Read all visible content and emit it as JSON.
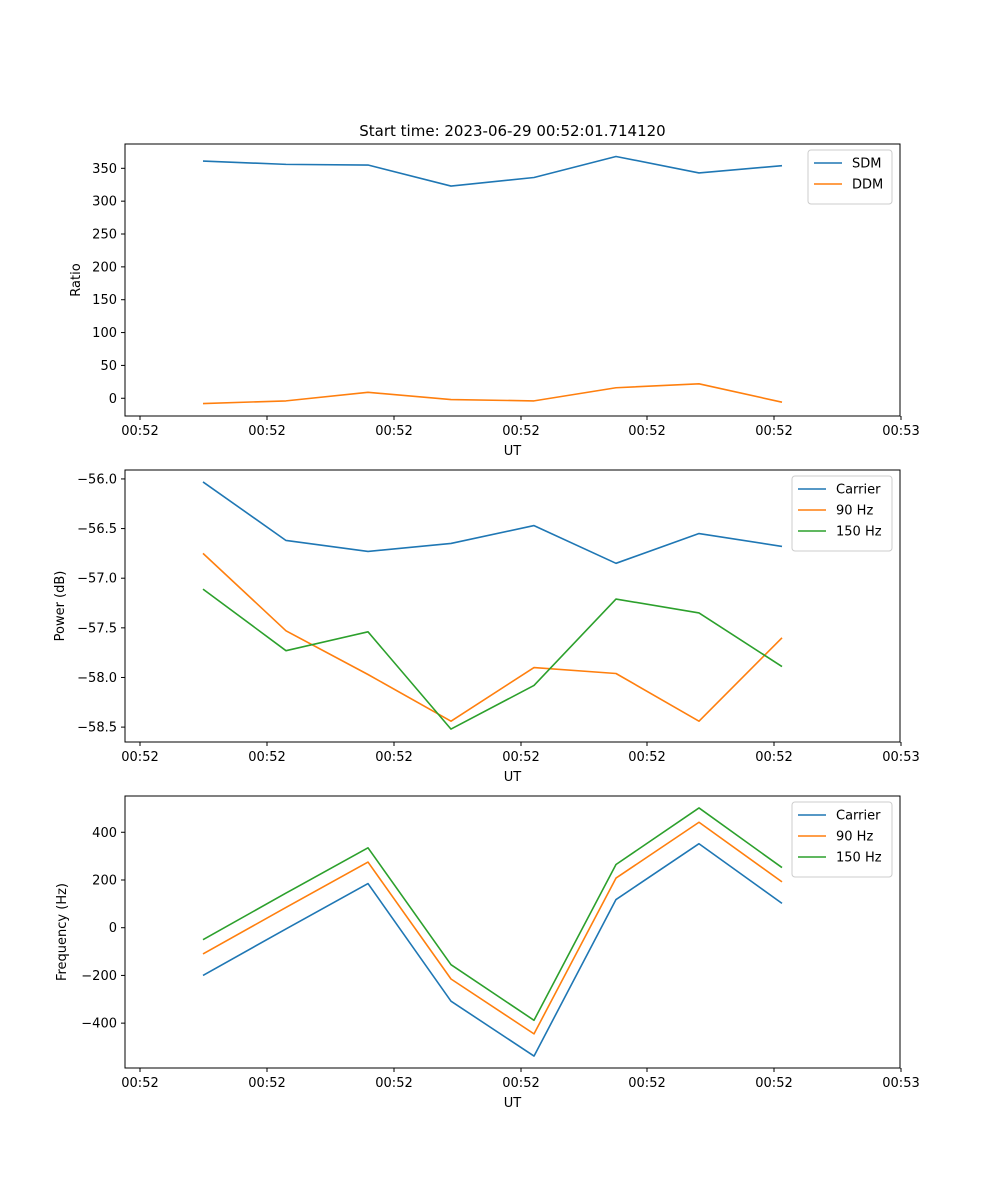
{
  "figure": {
    "title": "Start time: 2023-06-29 00:52:01.714120"
  },
  "chart_data": [
    {
      "type": "line",
      "xlabel": "UT",
      "ylabel": "Ratio",
      "xtick_labels": [
        "00:52",
        "00:52",
        "00:52",
        "00:52",
        "00:52",
        "00:52",
        "00:53"
      ],
      "yticks": [
        0,
        50,
        100,
        150,
        200,
        250,
        300,
        350
      ],
      "ylim": [
        -27,
        387
      ],
      "legend": "top-right",
      "series": [
        {
          "name": "SDM",
          "color": "#1f77b4",
          "values": [
            361,
            356,
            355,
            323,
            336,
            368,
            343,
            354
          ]
        },
        {
          "name": "DDM",
          "color": "#ff7f0e",
          "values": [
            -8,
            -4,
            9,
            -2,
            -4,
            16,
            22,
            -6
          ]
        }
      ]
    },
    {
      "type": "line",
      "xlabel": "UT",
      "ylabel": "Power (dB)",
      "xtick_labels": [
        "00:52",
        "00:52",
        "00:52",
        "00:52",
        "00:52",
        "00:52",
        "00:53"
      ],
      "yticks": [
        -58.5,
        -58.0,
        -57.5,
        -57.0,
        -56.5,
        -56.0
      ],
      "ytick_labels": [
        "−58.5",
        "−58.0",
        "−57.5",
        "−57.0",
        "−56.5",
        "−56.0"
      ],
      "ylim": [
        -58.65,
        -55.91
      ],
      "legend": "top-right",
      "series": [
        {
          "name": "Carrier",
          "color": "#1f77b4",
          "values": [
            -56.03,
            -56.62,
            -56.73,
            -56.65,
            -56.47,
            -56.85,
            -56.55,
            -56.68
          ]
        },
        {
          "name": "90 Hz",
          "color": "#ff7f0e",
          "values": [
            -56.75,
            -57.53,
            -57.97,
            -58.44,
            -57.9,
            -57.96,
            -58.44,
            -57.6
          ]
        },
        {
          "name": "150 Hz",
          "color": "#2ca02c",
          "values": [
            -57.11,
            -57.73,
            -57.54,
            -58.52,
            -58.08,
            -57.21,
            -57.35,
            -57.89
          ]
        }
      ]
    },
    {
      "type": "line",
      "xlabel": "UT",
      "ylabel": "Frequency (Hz)",
      "xtick_labels": [
        "00:52",
        "00:52",
        "00:52",
        "00:52",
        "00:52",
        "00:52",
        "00:53"
      ],
      "yticks": [
        -400,
        -200,
        0,
        200,
        400
      ],
      "ytick_labels": [
        "−400",
        "−200",
        "0",
        "200",
        "400"
      ],
      "ylim": [
        -588,
        552
      ],
      "legend": "top-right",
      "series": [
        {
          "name": "Carrier",
          "color": "#1f77b4",
          "values": [
            -200,
            -5,
            185,
            -308,
            -538,
            118,
            352,
            102
          ]
        },
        {
          "name": "90 Hz",
          "color": "#ff7f0e",
          "values": [
            -110,
            85,
            275,
            -215,
            -445,
            208,
            442,
            192
          ]
        },
        {
          "name": "150 Hz",
          "color": "#2ca02c",
          "values": [
            -50,
            145,
            335,
            -155,
            -388,
            265,
            502,
            252
          ]
        }
      ]
    }
  ]
}
